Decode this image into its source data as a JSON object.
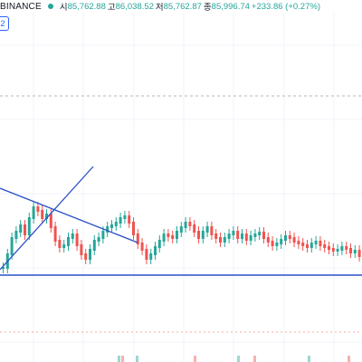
{
  "legend": {
    "exchange": "BINANCE",
    "open_label": "시",
    "open_value": "85,762.88",
    "high_label": "고",
    "high_value": "86,038.52",
    "low_label": "저",
    "low_value": "85,762.87",
    "close_label": "종",
    "close_value": "85,996.74",
    "change": "+233.86 (+0.27%)"
  },
  "badge": "2",
  "colors": {
    "up": "#26a69a",
    "down": "#ef5350",
    "drawing": "#2950c8",
    "dashed_line": "#b2b5be",
    "red_dashed_line": "#f7a8a6"
  },
  "icons": {
    "status_dot": "status-dot-icon"
  }
}
